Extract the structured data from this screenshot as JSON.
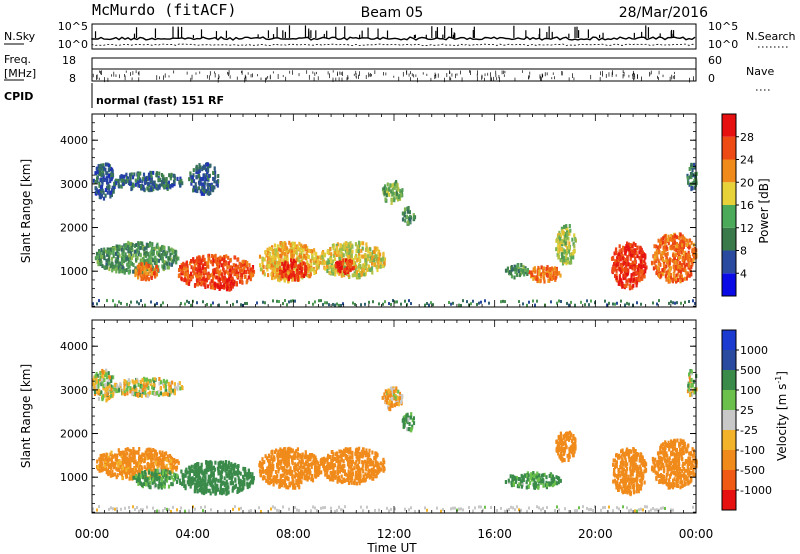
{
  "header": {
    "station": "McMurdo (fitACF)",
    "beam": "Beam 05",
    "date": "28/Mar/2016"
  },
  "top_panel": {
    "left_label": "N.Sky",
    "right_label": "N.Search",
    "left_ticks": [
      "10^5",
      "10^0"
    ],
    "right_ticks": [
      "10^5",
      "10^0"
    ]
  },
  "freq_panel": {
    "left_label_line1": "Freq.",
    "left_label_line2": "[MHz]",
    "left_ticks": [
      "18",
      "8"
    ],
    "right_label": "Nave",
    "right_ticks": [
      "60",
      "0"
    ]
  },
  "cpid": {
    "label": "CPID",
    "value": "normal (fast) 151 RF"
  },
  "x_axis": {
    "label": "Time UT",
    "ticks": [
      "00:00",
      "04:00",
      "08:00",
      "12:00",
      "16:00",
      "20:00",
      "00:00"
    ]
  },
  "power_colorbar": {
    "label": "Power [dB]",
    "ticks": [
      "28",
      "24",
      "20",
      "16",
      "12",
      "8",
      "4"
    ],
    "colors": [
      "#0a0ae6",
      "#2a4aa0",
      "#3a7a4a",
      "#4aaa5a",
      "#e8d23a",
      "#f08a1a",
      "#ee4a14",
      "#e61010"
    ]
  },
  "velocity_colorbar": {
    "label_main": "Velocity  [m s",
    "label_sup": "-1",
    "label_end": "]",
    "ticks": [
      "1000",
      "500",
      "100",
      "25",
      "-25",
      "-100",
      "-500",
      "-1000"
    ],
    "colors": [
      "#e61010",
      "#f05a14",
      "#f08a1a",
      "#f2b22a",
      "#c8c8c8",
      "#6ac04a",
      "#3a8a4a",
      "#2a4aa0",
      "#1a3ad0"
    ]
  },
  "chart_data": [
    {
      "type": "heatmap",
      "title": "",
      "xlabel": "Time UT",
      "ylabel": "Slant Range [km]",
      "colorbar_label": "Power [dB]",
      "x_range_hours": [
        0,
        24
      ],
      "ylim": [
        180,
        4600
      ],
      "y_ticks": [
        1000,
        2000,
        3000,
        4000
      ],
      "clim": [
        0,
        33
      ],
      "colorbar_ticks": [
        4,
        8,
        12,
        16,
        20,
        24,
        28
      ],
      "blobs": [
        {
          "t0": 0.0,
          "t1": 0.9,
          "r0": 2700,
          "r1": 3500,
          "value": 7
        },
        {
          "t0": 0.8,
          "t1": 3.6,
          "r0": 2900,
          "r1": 3300,
          "value": 8
        },
        {
          "t0": 3.8,
          "t1": 5.0,
          "r0": 2800,
          "r1": 3500,
          "value": 7
        },
        {
          "t0": 0.1,
          "t1": 3.4,
          "r0": 1000,
          "r1": 1700,
          "value": 12
        },
        {
          "t0": 1.6,
          "t1": 2.6,
          "r0": 850,
          "r1": 1250,
          "value": 24
        },
        {
          "t0": 3.4,
          "t1": 6.4,
          "r0": 650,
          "r1": 1400,
          "value": 26
        },
        {
          "t0": 4.8,
          "t1": 5.6,
          "r0": 600,
          "r1": 900,
          "value": 30
        },
        {
          "t0": 6.6,
          "t1": 9.0,
          "r0": 800,
          "r1": 1700,
          "value": 20
        },
        {
          "t0": 7.4,
          "t1": 8.5,
          "r0": 850,
          "r1": 1300,
          "value": 28
        },
        {
          "t0": 9.0,
          "t1": 11.6,
          "r0": 900,
          "r1": 1700,
          "value": 18
        },
        {
          "t0": 9.6,
          "t1": 10.4,
          "r0": 1000,
          "r1": 1300,
          "value": 28
        },
        {
          "t0": 11.5,
          "t1": 12.3,
          "r0": 2600,
          "r1": 3100,
          "value": 14
        },
        {
          "t0": 12.3,
          "t1": 12.8,
          "r0": 2100,
          "r1": 2500,
          "value": 12
        },
        {
          "t0": 17.3,
          "t1": 18.6,
          "r0": 800,
          "r1": 1150,
          "value": 24
        },
        {
          "t0": 16.4,
          "t1": 17.3,
          "r0": 900,
          "r1": 1200,
          "value": 12
        },
        {
          "t0": 18.4,
          "t1": 19.2,
          "r0": 1200,
          "r1": 2100,
          "value": 16
        },
        {
          "t0": 20.6,
          "t1": 22.0,
          "r0": 650,
          "r1": 1700,
          "value": 28
        },
        {
          "t0": 22.2,
          "t1": 24.0,
          "r0": 800,
          "r1": 1900,
          "value": 24
        },
        {
          "t0": 23.6,
          "t1": 24.0,
          "r0": 2900,
          "r1": 3500,
          "value": 10
        }
      ]
    },
    {
      "type": "heatmap",
      "title": "",
      "xlabel": "Time UT",
      "ylabel": "Slant Range [km]",
      "colorbar_label": "Velocity [m s-1]",
      "x_range_hours": [
        0,
        24
      ],
      "ylim": [
        180,
        4600
      ],
      "y_ticks": [
        1000,
        2000,
        3000,
        4000
      ],
      "colorbar_ticks": [
        1000,
        500,
        100,
        25,
        -25,
        -100,
        -500,
        -1000
      ],
      "blobs": [
        {
          "t0": 0.0,
          "t1": 0.9,
          "r0": 2800,
          "r1": 3500,
          "value": 0
        },
        {
          "t0": 0.8,
          "t1": 3.6,
          "r0": 2900,
          "r1": 3300,
          "value": 0
        },
        {
          "t0": 0.1,
          "t1": 3.4,
          "r0": 1000,
          "r1": 1700,
          "value": -200
        },
        {
          "t0": 1.6,
          "t1": 3.4,
          "r0": 800,
          "r1": 1200,
          "value": 150
        },
        {
          "t0": 3.4,
          "t1": 6.4,
          "r0": 650,
          "r1": 1400,
          "value": 250
        },
        {
          "t0": 6.6,
          "t1": 9.0,
          "r0": 800,
          "r1": 1700,
          "value": -300
        },
        {
          "t0": 9.0,
          "t1": 11.6,
          "r0": 900,
          "r1": 1700,
          "value": -250
        },
        {
          "t0": 11.5,
          "t1": 12.3,
          "r0": 2600,
          "r1": 3100,
          "value": -80
        },
        {
          "t0": 12.3,
          "t1": 12.8,
          "r0": 2100,
          "r1": 2500,
          "value": 120
        },
        {
          "t0": 16.4,
          "t1": 18.6,
          "r0": 800,
          "r1": 1150,
          "value": 150
        },
        {
          "t0": 18.4,
          "t1": 19.2,
          "r0": 1400,
          "r1": 2100,
          "value": -300
        },
        {
          "t0": 20.6,
          "t1": 22.0,
          "r0": 650,
          "r1": 1700,
          "value": -300
        },
        {
          "t0": 22.2,
          "t1": 24.0,
          "r0": 800,
          "r1": 1900,
          "value": -350
        },
        {
          "t0": 23.6,
          "t1": 24.0,
          "r0": 2900,
          "r1": 3500,
          "value": 0
        }
      ]
    }
  ]
}
